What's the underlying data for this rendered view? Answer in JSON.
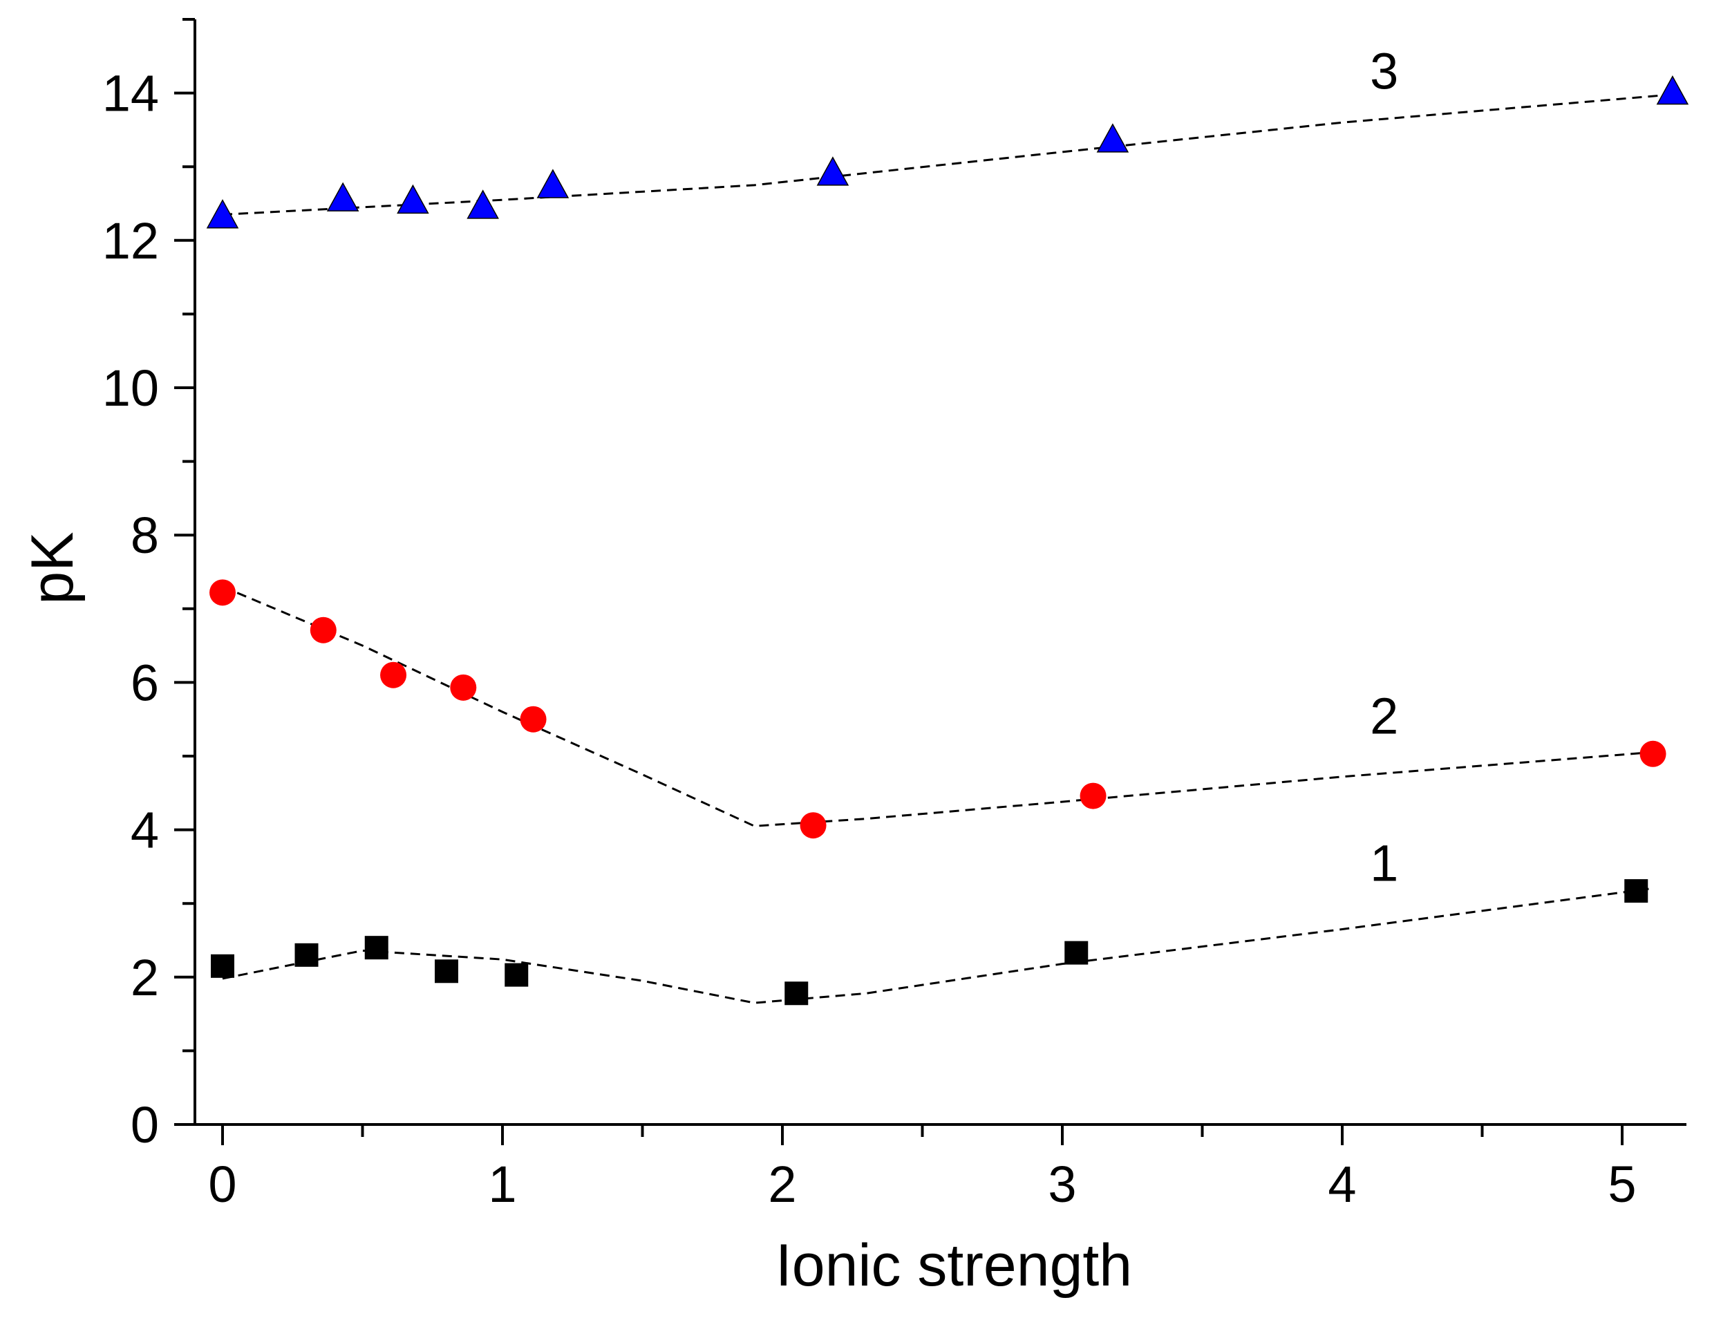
{
  "chart_data": {
    "type": "scatter",
    "title": "",
    "xlabel": "Ionic strength",
    "ylabel": "pK",
    "xlim": [
      -0.1,
      5.25
    ],
    "ylim": [
      0,
      15
    ],
    "xticks": [
      0,
      1,
      2,
      3,
      4,
      5
    ],
    "yticks": [
      0,
      2,
      4,
      6,
      8,
      10,
      12,
      14
    ],
    "grid": false,
    "series": [
      {
        "name": "1",
        "marker": "square",
        "color": "#000000",
        "x": [
          0.0,
          0.3,
          0.55,
          0.8,
          1.05,
          2.05,
          3.05,
          5.05
        ],
        "y": [
          2.15,
          2.3,
          2.4,
          2.08,
          2.03,
          1.78,
          2.33,
          3.17
        ],
        "fit_x": [
          0.0,
          0.5,
          1.0,
          1.5,
          1.9,
          2.3,
          3.0,
          4.0,
          5.1
        ],
        "fit_y": [
          1.98,
          2.36,
          2.24,
          1.95,
          1.65,
          1.78,
          2.18,
          2.65,
          3.2
        ],
        "label_x": 4.15,
        "label_y": 3.55
      },
      {
        "name": "2",
        "marker": "circle",
        "color": "#ff0000",
        "x": [
          0.0,
          0.36,
          0.61,
          0.86,
          1.11,
          2.11,
          3.11,
          5.11
        ],
        "y": [
          7.22,
          6.71,
          6.1,
          5.93,
          5.5,
          4.06,
          4.46,
          5.03
        ],
        "fit_x": [
          0.0,
          0.5,
          1.0,
          1.5,
          1.9,
          2.3,
          3.0,
          4.0,
          5.1
        ],
        "fit_y": [
          7.3,
          6.5,
          5.6,
          4.75,
          4.05,
          4.15,
          4.38,
          4.72,
          5.05
        ],
        "label_x": 4.15,
        "label_y": 5.55
      },
      {
        "name": "3",
        "marker": "triangle",
        "color": "#0000ff",
        "x": [
          0.0,
          0.43,
          0.68,
          0.93,
          1.18,
          2.18,
          3.18,
          5.18
        ],
        "y": [
          12.32,
          12.55,
          12.52,
          12.45,
          12.73,
          12.9,
          13.35,
          14.0
        ],
        "fit_x": [
          0.0,
          1.0,
          1.9,
          3.0,
          4.0,
          5.18
        ],
        "fit_y": [
          12.35,
          12.55,
          12.75,
          13.2,
          13.6,
          13.98
        ],
        "label_x": 4.15,
        "label_y": 14.3
      }
    ]
  }
}
